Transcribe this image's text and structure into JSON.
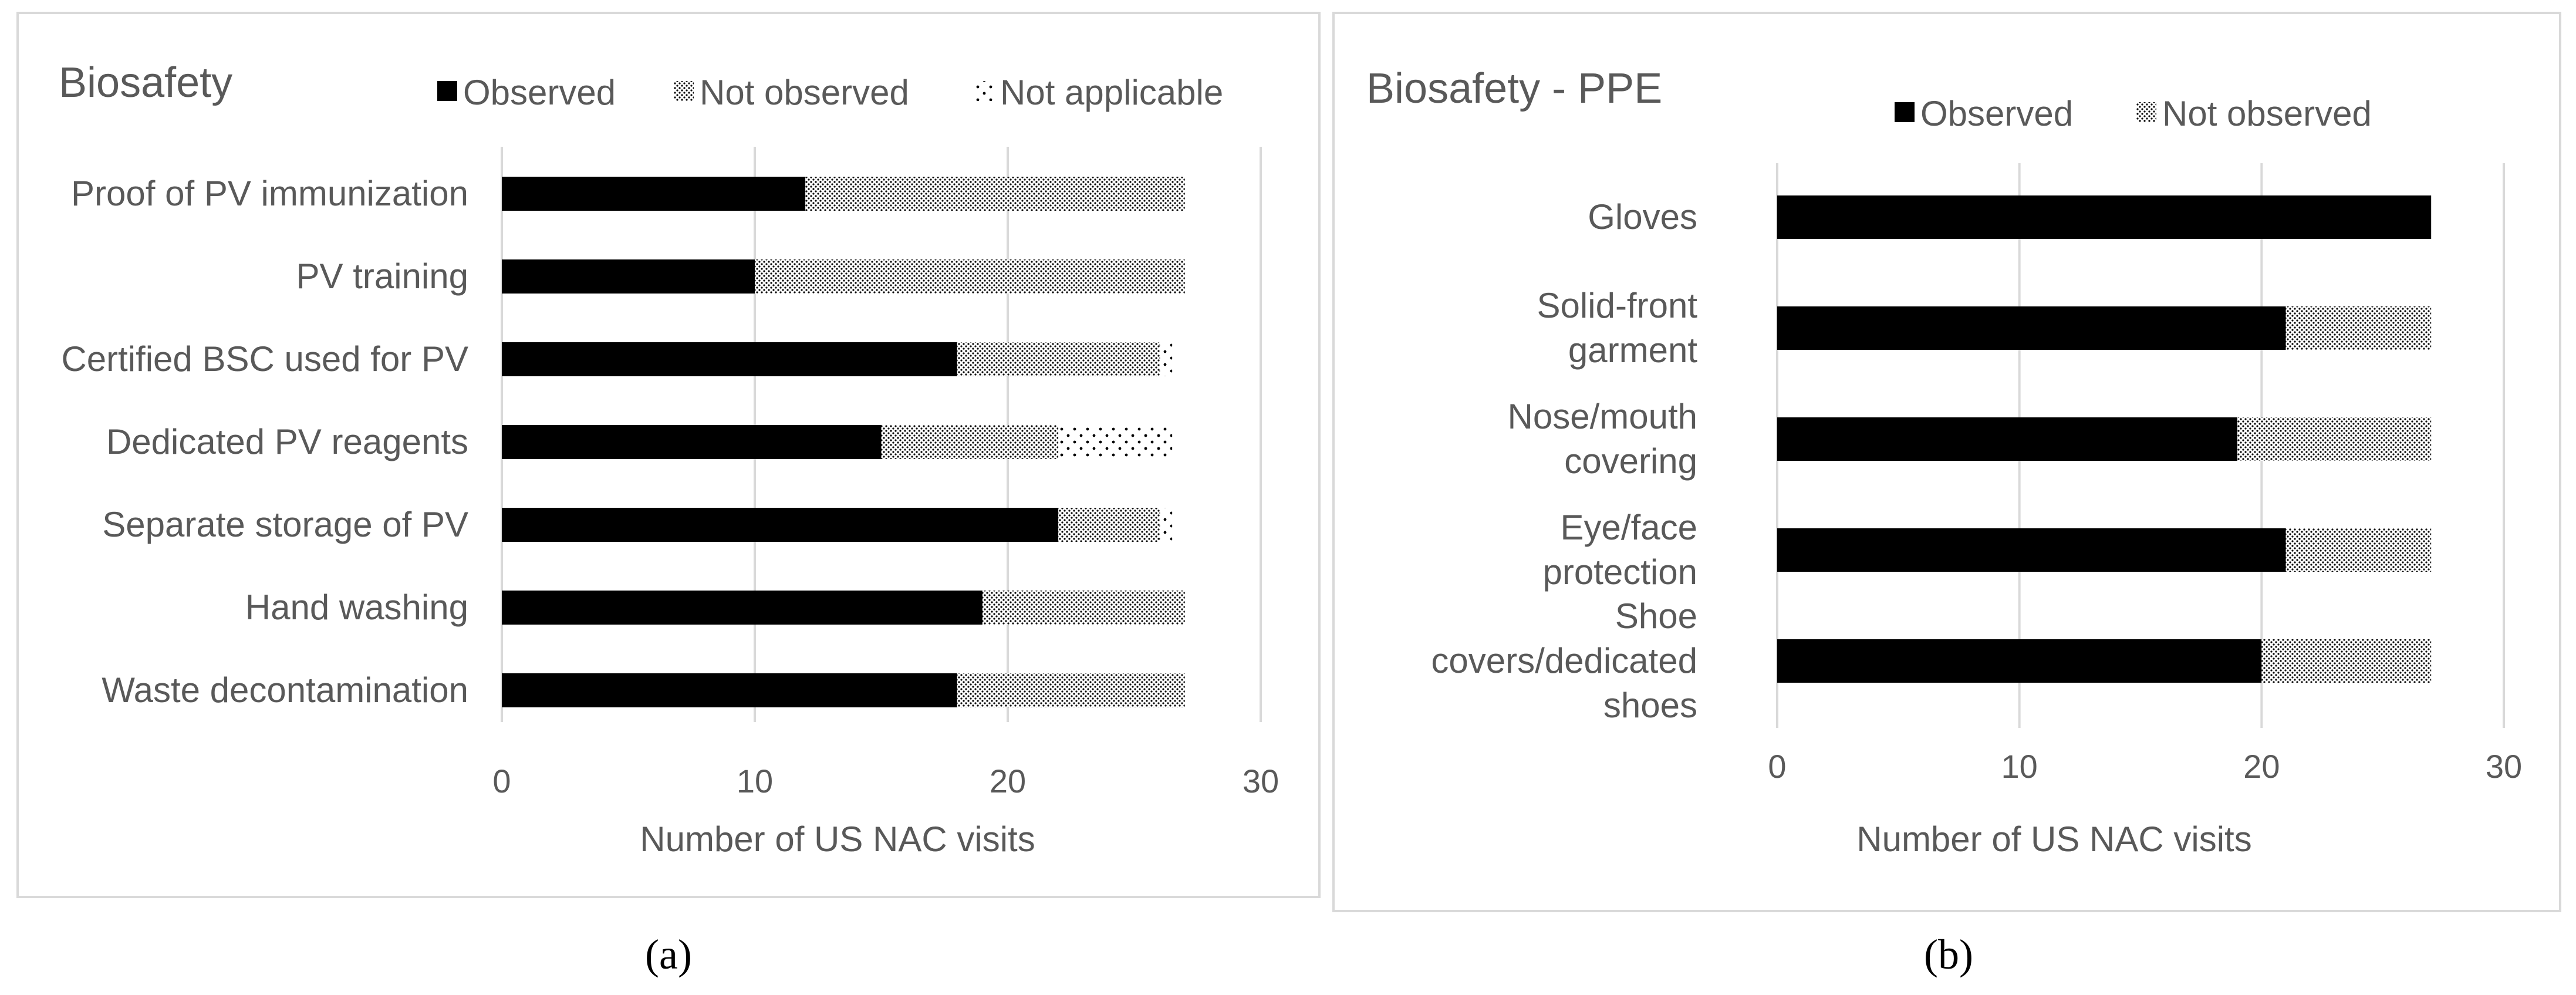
{
  "chart_data": [
    {
      "type": "bar",
      "orientation": "horizontal",
      "stacked": true,
      "title": "Biosafety",
      "caption": "(a)",
      "xlabel": "Number of US NAC visits",
      "xlim": [
        0,
        30
      ],
      "xticks": [
        "0",
        "10",
        "20",
        "30"
      ],
      "grid": true,
      "legend_placement": "top-right",
      "categories": [
        "Proof of PV immunization",
        "PV training",
        "Certified BSC used for PV",
        "Dedicated PV reagents",
        "Separate storage of PV",
        "Hand washing",
        "Waste decontamination"
      ],
      "series": [
        {
          "name": "Observed",
          "pattern": "solid",
          "values": [
            12,
            10,
            18,
            15,
            22,
            19,
            18
          ]
        },
        {
          "name": "Not observed",
          "pattern": "dense-dots",
          "values": [
            15,
            17,
            8,
            7,
            4,
            8,
            9
          ]
        },
        {
          "name": "Not applicable",
          "pattern": "sparse-dots",
          "values": [
            0,
            0,
            0.5,
            4.5,
            0.5,
            0,
            0
          ]
        }
      ]
    },
    {
      "type": "bar",
      "orientation": "horizontal",
      "stacked": true,
      "title": "Biosafety - PPE",
      "caption": "(b)",
      "xlabel": "Number of US NAC visits",
      "xlim": [
        0,
        30
      ],
      "xticks": [
        "0",
        "10",
        "20",
        "30"
      ],
      "grid": true,
      "legend_placement": "top-right",
      "categories": [
        "Gloves",
        "Solid-front garment",
        "Nose/mouth covering",
        "Eye/face protection",
        "Shoe covers/dedicated shoes"
      ],
      "series": [
        {
          "name": "Observed",
          "pattern": "solid",
          "values": [
            27,
            21,
            19,
            21,
            20
          ]
        },
        {
          "name": "Not observed",
          "pattern": "dense-dots",
          "values": [
            0,
            6,
            8,
            6,
            7
          ]
        }
      ]
    }
  ],
  "colors": {
    "bar_solid": "#000000",
    "gridline": "#d9d9d9",
    "frame": "#d9d9d9",
    "text": "#595959"
  }
}
